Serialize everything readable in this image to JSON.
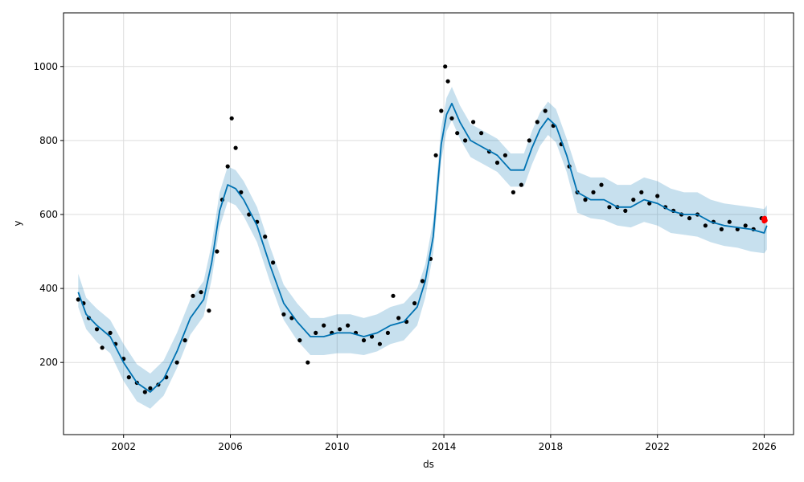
{
  "chart_data": {
    "type": "line",
    "title": "",
    "xlabel": "ds",
    "ylabel": "y",
    "xlim": [
      1999.75,
      2027.1
    ],
    "ylim": [
      5,
      1145
    ],
    "grid": true,
    "xticks": [
      2002,
      2006,
      2010,
      2014,
      2018,
      2022,
      2026
    ],
    "xtick_labels": [
      "2002",
      "2006",
      "2010",
      "2014",
      "2018",
      "2022",
      "2026"
    ],
    "yticks": [
      200,
      400,
      600,
      800,
      1000
    ],
    "ytick_labels": [
      "200",
      "400",
      "600",
      "800",
      "1000"
    ],
    "colors": {
      "forecast_line": "#0072B2",
      "interval_fill": "#0072B2",
      "observed_points": "#000000",
      "highlight_points": "#ff0000",
      "grid": "#dddddd"
    },
    "series": [
      {
        "kind": "forecast",
        "x": [
          2000.3,
          2000.6,
          2001.0,
          2001.5,
          2002.0,
          2002.5,
          2003.0,
          2003.5,
          2004.0,
          2004.5,
          2005.0,
          2005.3,
          2005.6,
          2005.9,
          2006.2,
          2006.5,
          2007.0,
          2007.5,
          2008.0,
          2008.5,
          2009.0,
          2009.5,
          2010.0,
          2010.5,
          2011.0,
          2011.5,
          2012.0,
          2012.5,
          2013.0,
          2013.3,
          2013.6,
          2013.9,
          2014.1,
          2014.3,
          2014.6,
          2015.0,
          2015.5,
          2016.0,
          2016.5,
          2017.0,
          2017.3,
          2017.6,
          2017.9,
          2018.2,
          2018.6,
          2019.0,
          2019.5,
          2020.0,
          2020.5,
          2021.0,
          2021.5,
          2022.0,
          2022.5,
          2023.0,
          2023.5,
          2024.0,
          2024.5,
          2025.0,
          2025.5,
          2026.0,
          2026.1
        ],
        "y": [
          390,
          330,
          300,
          270,
          200,
          145,
          120,
          155,
          230,
          320,
          370,
          470,
          610,
          680,
          670,
          640,
          570,
          460,
          360,
          310,
          270,
          270,
          280,
          280,
          270,
          280,
          300,
          310,
          350,
          420,
          540,
          790,
          870,
          900,
          850,
          800,
          780,
          760,
          720,
          720,
          780,
          830,
          860,
          840,
          760,
          660,
          640,
          640,
          620,
          620,
          640,
          630,
          610,
          600,
          600,
          580,
          570,
          565,
          560,
          550,
          570
        ],
        "lower": [
          350,
          290,
          255,
          225,
          150,
          95,
          75,
          110,
          185,
          275,
          325,
          425,
          565,
          635,
          625,
          595,
          525,
          415,
          315,
          260,
          220,
          220,
          225,
          225,
          220,
          230,
          250,
          260,
          300,
          375,
          495,
          745,
          825,
          855,
          805,
          755,
          735,
          715,
          675,
          675,
          735,
          785,
          815,
          795,
          715,
          605,
          590,
          585,
          570,
          565,
          580,
          570,
          550,
          545,
          540,
          525,
          515,
          510,
          500,
          495,
          505
        ],
        "upper": [
          440,
          375,
          345,
          315,
          250,
          195,
          170,
          205,
          280,
          370,
          420,
          520,
          660,
          730,
          720,
          690,
          620,
          510,
          410,
          360,
          320,
          320,
          330,
          330,
          320,
          330,
          350,
          360,
          400,
          465,
          585,
          835,
          915,
          945,
          895,
          845,
          825,
          805,
          765,
          765,
          825,
          875,
          905,
          885,
          805,
          715,
          700,
          700,
          680,
          680,
          700,
          690,
          670,
          660,
          660,
          640,
          630,
          625,
          620,
          615,
          625
        ]
      },
      {
        "kind": "observed",
        "x": [
          2000.3,
          2000.5,
          2000.7,
          2001.0,
          2001.2,
          2001.5,
          2001.7,
          2002.0,
          2002.2,
          2002.5,
          2002.8,
          2003.0,
          2003.3,
          2003.6,
          2004.0,
          2004.3,
          2004.6,
          2004.9,
          2005.2,
          2005.5,
          2005.7,
          2005.9,
          2006.05,
          2006.2,
          2006.4,
          2006.7,
          2007.0,
          2007.3,
          2007.6,
          2008.0,
          2008.3,
          2008.6,
          2008.9,
          2009.2,
          2009.5,
          2009.8,
          2010.1,
          2010.4,
          2010.7,
          2011.0,
          2011.3,
          2011.6,
          2011.9,
          2012.1,
          2012.3,
          2012.6,
          2012.9,
          2013.2,
          2013.5,
          2013.7,
          2013.9,
          2014.05,
          2014.15,
          2014.3,
          2014.5,
          2014.8,
          2015.1,
          2015.4,
          2015.7,
          2016.0,
          2016.3,
          2016.6,
          2016.9,
          2017.2,
          2017.5,
          2017.8,
          2018.1,
          2018.4,
          2018.7,
          2019.0,
          2019.3,
          2019.6,
          2019.9,
          2020.2,
          2020.5,
          2020.8,
          2021.1,
          2021.4,
          2021.7,
          2022.0,
          2022.3,
          2022.6,
          2022.9,
          2023.2,
          2023.5,
          2023.8,
          2024.1,
          2024.4,
          2024.7,
          2025.0,
          2025.3,
          2025.6,
          2025.9
        ],
        "y": [
          370,
          360,
          320,
          290,
          240,
          280,
          250,
          210,
          160,
          145,
          120,
          130,
          140,
          160,
          200,
          260,
          380,
          390,
          340,
          500,
          640,
          730,
          860,
          780,
          660,
          600,
          580,
          540,
          470,
          330,
          320,
          260,
          200,
          280,
          300,
          280,
          290,
          300,
          280,
          260,
          270,
          250,
          280,
          380,
          320,
          310,
          360,
          420,
          480,
          760,
          880,
          1000,
          960,
          860,
          820,
          800,
          850,
          820,
          770,
          740,
          760,
          660,
          680,
          800,
          850,
          880,
          840,
          790,
          730,
          660,
          640,
          660,
          680,
          620,
          620,
          610,
          640,
          660,
          630,
          650,
          620,
          610,
          600,
          590,
          600,
          570,
          580,
          560,
          580,
          560,
          570,
          560,
          590
        ]
      },
      {
        "kind": "highlight",
        "x": [
          2025.98,
          2026.0,
          2026.02,
          2026.04
        ],
        "y": [
          588,
          582,
          590,
          584
        ]
      }
    ]
  }
}
